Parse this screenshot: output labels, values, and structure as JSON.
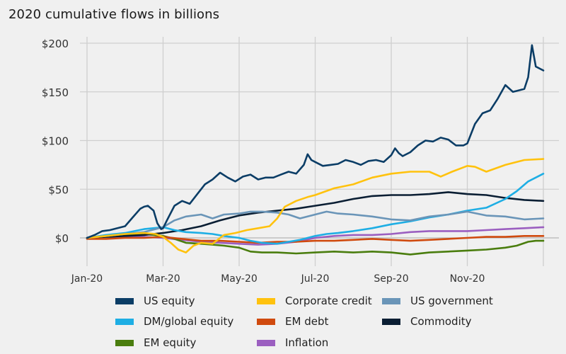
{
  "chart_data": {
    "type": "line",
    "title": "2020 cumulative flows in billions",
    "xlabel": "",
    "ylabel": "",
    "x_unit": "months since Jan 1, 2020",
    "xlim": [
      0,
      12
    ],
    "ylim": [
      -25,
      200
    ],
    "yticks": [
      {
        "value": 200,
        "label": "$200"
      },
      {
        "value": 150,
        "label": "$150"
      },
      {
        "value": 100,
        "label": "$100"
      },
      {
        "value": 50,
        "label": "$50"
      },
      {
        "value": 0,
        "label": "$0"
      }
    ],
    "xticks": [
      {
        "value": 0,
        "label": "Jan-20"
      },
      {
        "value": 2,
        "label": "Mar-20"
      },
      {
        "value": 4,
        "label": "May-20"
      },
      {
        "value": 6,
        "label": "Jul-20"
      },
      {
        "value": 8,
        "label": "Sep-20"
      },
      {
        "value": 10,
        "label": "Nov-20"
      },
      {
        "value": 12,
        "label": ""
      }
    ],
    "grid": true,
    "legend_position": "bottom",
    "series": [
      {
        "name": "US equity",
        "color": "#0b3d66",
        "x": [
          0,
          0.2,
          0.4,
          0.6,
          0.8,
          1.0,
          1.2,
          1.4,
          1.5,
          1.6,
          1.75,
          1.85,
          1.95,
          2.0,
          2.1,
          2.3,
          2.5,
          2.7,
          2.9,
          3.1,
          3.3,
          3.5,
          3.7,
          3.9,
          4.1,
          4.3,
          4.5,
          4.7,
          4.9,
          5.1,
          5.3,
          5.5,
          5.7,
          5.8,
          5.9,
          6.0,
          6.2,
          6.4,
          6.6,
          6.8,
          7.0,
          7.2,
          7.4,
          7.6,
          7.8,
          8.0,
          8.1,
          8.2,
          8.3,
          8.5,
          8.7,
          8.9,
          9.1,
          9.3,
          9.5,
          9.7,
          9.9,
          10.0,
          10.2,
          10.4,
          10.6,
          10.8,
          11.0,
          11.2,
          11.4,
          11.5,
          11.6,
          11.7,
          11.8,
          12.0
        ],
        "y": [
          0,
          3,
          7,
          8,
          10,
          12,
          21,
          30,
          32,
          33,
          28,
          15,
          9,
          10,
          18,
          33,
          38,
          35,
          45,
          55,
          60,
          67,
          62,
          58,
          63,
          65,
          60,
          62,
          62,
          65,
          68,
          66,
          75,
          86,
          80,
          78,
          74,
          75,
          76,
          80,
          78,
          75,
          79,
          80,
          78,
          85,
          92,
          87,
          84,
          88,
          95,
          100,
          99,
          103,
          101,
          95,
          95,
          97,
          117,
          128,
          131,
          143,
          157,
          150,
          152,
          153,
          165,
          198,
          176,
          172
        ]
      },
      {
        "name": "Corporate credit",
        "color": "#ffc20e",
        "x": [
          0,
          0.5,
          1.0,
          1.5,
          1.8,
          2.0,
          2.2,
          2.4,
          2.6,
          2.8,
          3.0,
          3.3,
          3.6,
          3.9,
          4.2,
          4.5,
          4.8,
          5.0,
          5.2,
          5.5,
          5.8,
          6.0,
          6.5,
          7.0,
          7.5,
          8.0,
          8.5,
          9.0,
          9.3,
          9.6,
          10.0,
          10.2,
          10.5,
          11.0,
          11.5,
          12.0
        ],
        "y": [
          0,
          2,
          4,
          5,
          4,
          1,
          -5,
          -12,
          -15,
          -8,
          -5,
          -6,
          3,
          5,
          8,
          10,
          12,
          20,
          32,
          38,
          42,
          44,
          51,
          55,
          62,
          66,
          68,
          68,
          63,
          68,
          74,
          73,
          68,
          75,
          80,
          81
        ]
      },
      {
        "name": "US government",
        "color": "#6a95b8",
        "x": [
          0,
          0.5,
          1.0,
          1.5,
          2.0,
          2.3,
          2.6,
          3.0,
          3.3,
          3.6,
          4.0,
          4.3,
          4.6,
          5.0,
          5.3,
          5.6,
          6.0,
          6.3,
          6.6,
          7.0,
          7.5,
          8.0,
          8.5,
          9.0,
          9.5,
          10.0,
          10.5,
          11.0,
          11.5,
          12.0
        ],
        "y": [
          0,
          2,
          4,
          6,
          11,
          18,
          22,
          24,
          20,
          24,
          25,
          27,
          27,
          26,
          24,
          20,
          24,
          27,
          25,
          24,
          22,
          19,
          18,
          22,
          24,
          27,
          23,
          22,
          19,
          20
        ]
      },
      {
        "name": "DM/global equity",
        "color": "#1eaee4",
        "x": [
          0,
          0.5,
          1.0,
          1.5,
          2.0,
          2.3,
          2.6,
          3.0,
          3.3,
          3.6,
          4.0,
          4.3,
          4.6,
          5.0,
          5.3,
          5.6,
          6.0,
          6.3,
          6.6,
          7.0,
          7.5,
          8.0,
          8.5,
          9.0,
          9.5,
          10.0,
          10.5,
          11.0,
          11.3,
          11.6,
          12.0
        ],
        "y": [
          0,
          3,
          5,
          9,
          11,
          8,
          6,
          5,
          4,
          2,
          0,
          -3,
          -5,
          -6,
          -4,
          -2,
          2,
          4,
          5,
          7,
          10,
          14,
          17,
          21,
          24,
          28,
          31,
          40,
          48,
          58,
          66
        ]
      },
      {
        "name": "EM debt",
        "color": "#d04a0e",
        "x": [
          0,
          0.5,
          1.0,
          1.5,
          2.0,
          2.5,
          3.0,
          3.5,
          4.0,
          4.5,
          5.0,
          5.5,
          6.0,
          6.5,
          7.0,
          7.5,
          8.0,
          8.5,
          9.0,
          9.5,
          10.0,
          10.5,
          11.0,
          11.5,
          12.0
        ],
        "y": [
          -1,
          -1,
          0,
          0,
          1,
          -1,
          -3,
          -3,
          -4,
          -5,
          -4,
          -4,
          -3,
          -3,
          -2,
          -1,
          -2,
          -3,
          -2,
          -1,
          0,
          1,
          1,
          2,
          2
        ]
      },
      {
        "name": "Commodity",
        "color": "#0a1e33",
        "x": [
          0,
          0.5,
          1.0,
          1.5,
          2.0,
          2.5,
          3.0,
          3.5,
          4.0,
          4.5,
          5.0,
          5.5,
          6.0,
          6.5,
          7.0,
          7.5,
          8.0,
          8.5,
          9.0,
          9.5,
          10.0,
          10.5,
          11.0,
          11.5,
          12.0
        ],
        "y": [
          0,
          1,
          2,
          3,
          5,
          8,
          12,
          18,
          23,
          26,
          28,
          30,
          33,
          36,
          40,
          43,
          44,
          44,
          45,
          47,
          45,
          44,
          41,
          39,
          38
        ]
      },
      {
        "name": "EM equity",
        "color": "#4a7d0e",
        "x": [
          0,
          0.5,
          1.0,
          1.5,
          2.0,
          2.3,
          2.6,
          3.0,
          3.3,
          3.6,
          4.0,
          4.3,
          4.6,
          5.0,
          5.5,
          6.0,
          6.5,
          7.0,
          7.5,
          8.0,
          8.5,
          9.0,
          9.5,
          10.0,
          10.5,
          11.0,
          11.3,
          11.6,
          11.8,
          12.0
        ],
        "y": [
          0,
          2,
          3,
          4,
          2,
          -1,
          -5,
          -6,
          -7,
          -8,
          -10,
          -14,
          -15,
          -15,
          -16,
          -15,
          -14,
          -15,
          -14,
          -15,
          -17,
          -15,
          -14,
          -13,
          -12,
          -10,
          -8,
          -4,
          -3,
          -3
        ]
      },
      {
        "name": "Inflation",
        "color": "#9b5fc0",
        "x": [
          0,
          0.5,
          1.0,
          1.5,
          2.0,
          2.5,
          3.0,
          3.5,
          4.0,
          4.5,
          5.0,
          5.5,
          6.0,
          6.5,
          7.0,
          7.5,
          8.0,
          8.5,
          9.0,
          9.5,
          10.0,
          10.5,
          11.0,
          11.5,
          12.0
        ],
        "y": [
          0,
          1,
          1,
          1,
          0,
          -2,
          -4,
          -5,
          -6,
          -7,
          -6,
          -4,
          0,
          2,
          3,
          3,
          4,
          6,
          7,
          7,
          7,
          8,
          9,
          10,
          11
        ]
      }
    ]
  },
  "legend": {
    "items": [
      {
        "label": "US equity",
        "color": "#0b3d66"
      },
      {
        "label": "Corporate credit",
        "color": "#ffc20e"
      },
      {
        "label": "US government",
        "color": "#6a95b8"
      },
      {
        "label": "DM/global equity",
        "color": "#1eaee4"
      },
      {
        "label": "EM debt",
        "color": "#d04a0e"
      },
      {
        "label": "Commodity",
        "color": "#0a1e33"
      },
      {
        "label": "EM equity",
        "color": "#4a7d0e"
      },
      {
        "label": "Inflation",
        "color": "#9b5fc0"
      }
    ]
  }
}
